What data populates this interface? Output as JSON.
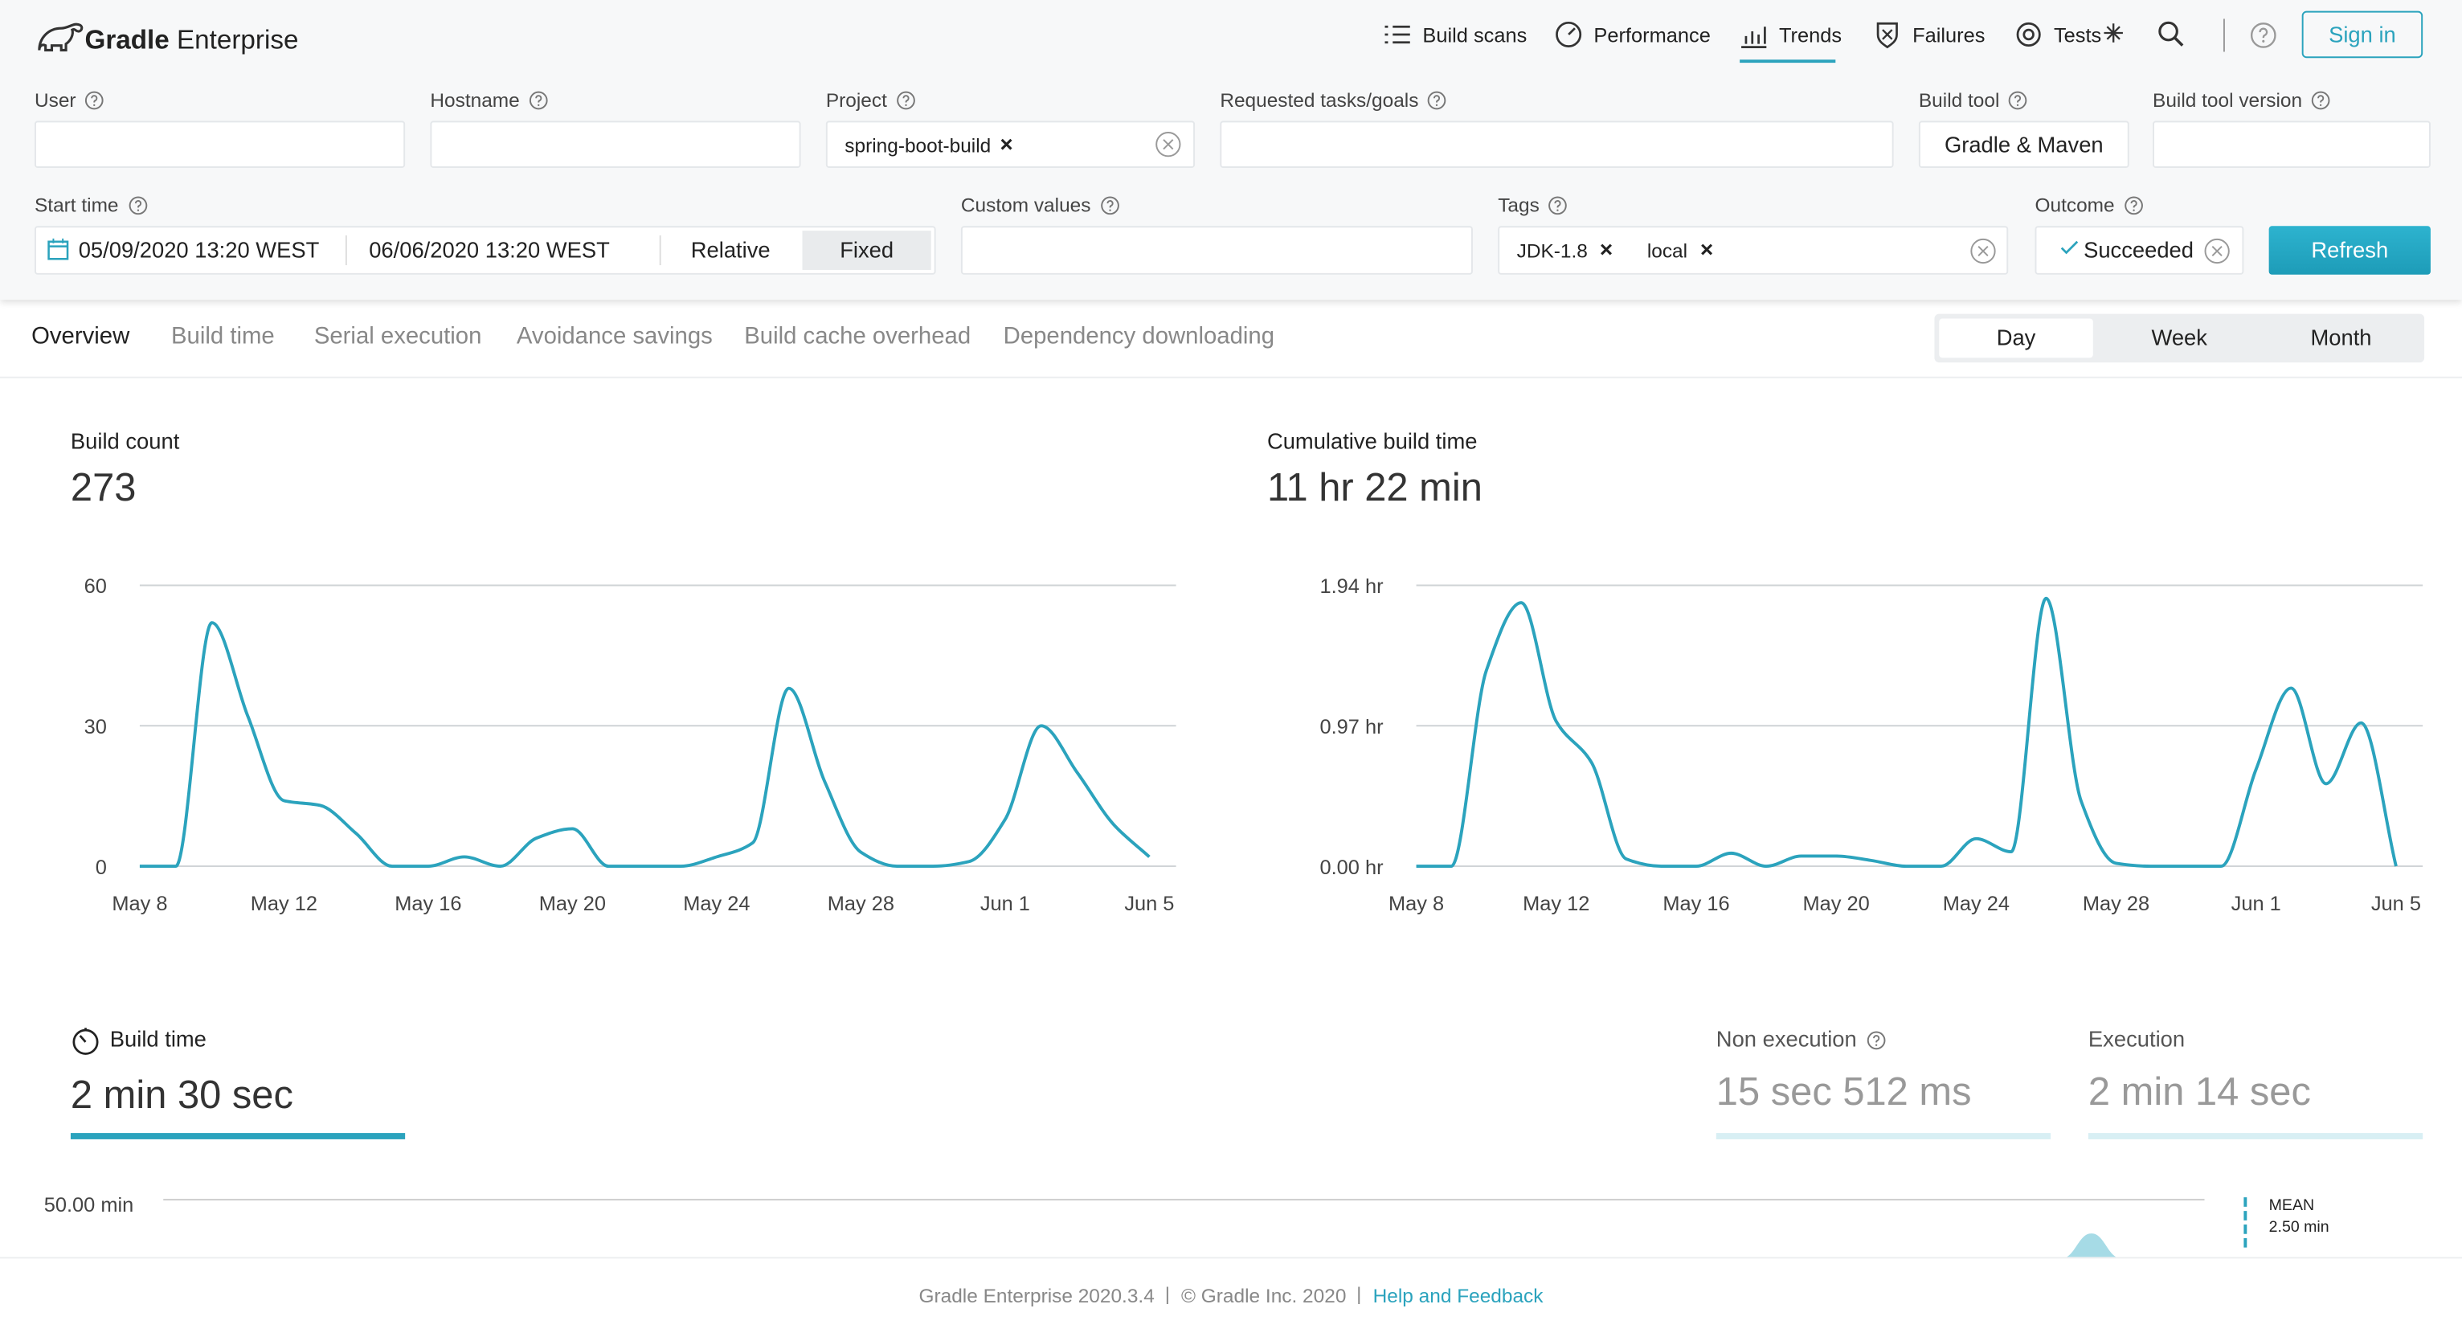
{
  "header": {
    "brand_bold": "Gradle",
    "brand": "Enterprise",
    "nav": [
      "Build scans",
      "Performance",
      "Trends",
      "Failures",
      "Tests"
    ],
    "sign_in": "Sign in"
  },
  "filters": {
    "user": "User",
    "hostname": "Hostname",
    "project": "Project",
    "project_tag": "spring-boot-build",
    "requested_tasks": "Requested tasks/goals",
    "build_tool": "Build tool",
    "build_tool_value": "Gradle & Maven",
    "build_tool_version": "Build tool version",
    "start_time": "Start time",
    "start_from": "05/09/2020 13:20 WEST",
    "start_to": "06/06/2020 13:20 WEST",
    "relative": "Relative",
    "fixed": "Fixed",
    "custom_values": "Custom values",
    "tags": "Tags",
    "tag_values": [
      "JDK-1.8",
      "local"
    ],
    "outcome": "Outcome",
    "outcome_value": "Succeeded",
    "refresh": "Refresh"
  },
  "tabs": [
    "Overview",
    "Build time",
    "Serial execution",
    "Avoidance savings",
    "Build cache overhead",
    "Dependency downloading"
  ],
  "periods": [
    "Day",
    "Week",
    "Month"
  ],
  "chart_data": [
    {
      "type": "line",
      "title": "Build count",
      "subtitle": "273",
      "color": "#2ba3bd",
      "categories": [
        "May 8",
        null,
        null,
        null,
        "May 12",
        null,
        null,
        null,
        "May 16",
        null,
        null,
        null,
        "May 20",
        null,
        null,
        null,
        "May 24",
        null,
        null,
        null,
        "May 28",
        null,
        null,
        null,
        "Jun 1",
        null,
        null,
        null,
        "Jun 5"
      ],
      "values": [
        0,
        0,
        52,
        32,
        14,
        13,
        7,
        0,
        0,
        2,
        0,
        6,
        8,
        0,
        0,
        0,
        2,
        5,
        38,
        18,
        3,
        0,
        0,
        1,
        10,
        30,
        20,
        9,
        2
      ],
      "ylim": [
        0,
        60
      ],
      "yticks": [
        0,
        30,
        60
      ],
      "grid": true
    },
    {
      "type": "line",
      "title": "Cumulative build time",
      "subtitle": "11 hr 22 min",
      "color": "#2ba3bd",
      "categories": [
        "May 8",
        null,
        null,
        null,
        "May 12",
        null,
        null,
        null,
        "May 16",
        null,
        null,
        null,
        "May 20",
        null,
        null,
        null,
        "May 24",
        null,
        null,
        null,
        "May 28",
        null,
        null,
        null,
        "Jun 1",
        null,
        null,
        null,
        "Jun 5"
      ],
      "values": [
        0,
        0,
        1.35,
        1.82,
        1.0,
        0.72,
        0.05,
        0,
        0,
        0.09,
        0,
        0.07,
        0.07,
        0.04,
        0,
        0,
        0.19,
        0.1,
        1.85,
        0.45,
        0.02,
        0,
        0,
        0,
        0.67,
        1.23,
        0.57,
        0.99,
        0
      ],
      "ylim": [
        0,
        1.94
      ],
      "yticks": [
        {
          "value": 0,
          "label": "0.00 hr"
        },
        {
          "value": 0.97,
          "label": "0.97 hr"
        },
        {
          "value": 1.94,
          "label": "1.94 hr"
        }
      ],
      "grid": true
    }
  ],
  "build_time": {
    "title": "Build time",
    "value": "2 min 30 sec",
    "non_execution_label": "Non execution",
    "non_execution": "15 sec 512 ms",
    "execution_label": "Execution",
    "execution": "2 min 14 sec",
    "ytick": "50.00 min",
    "mean_label": "MEAN",
    "mean": "2.50 min"
  },
  "footer": {
    "version": "Gradle Enterprise 2020.3.4",
    "copyright": "© Gradle Inc. 2020",
    "help": "Help and Feedback"
  }
}
